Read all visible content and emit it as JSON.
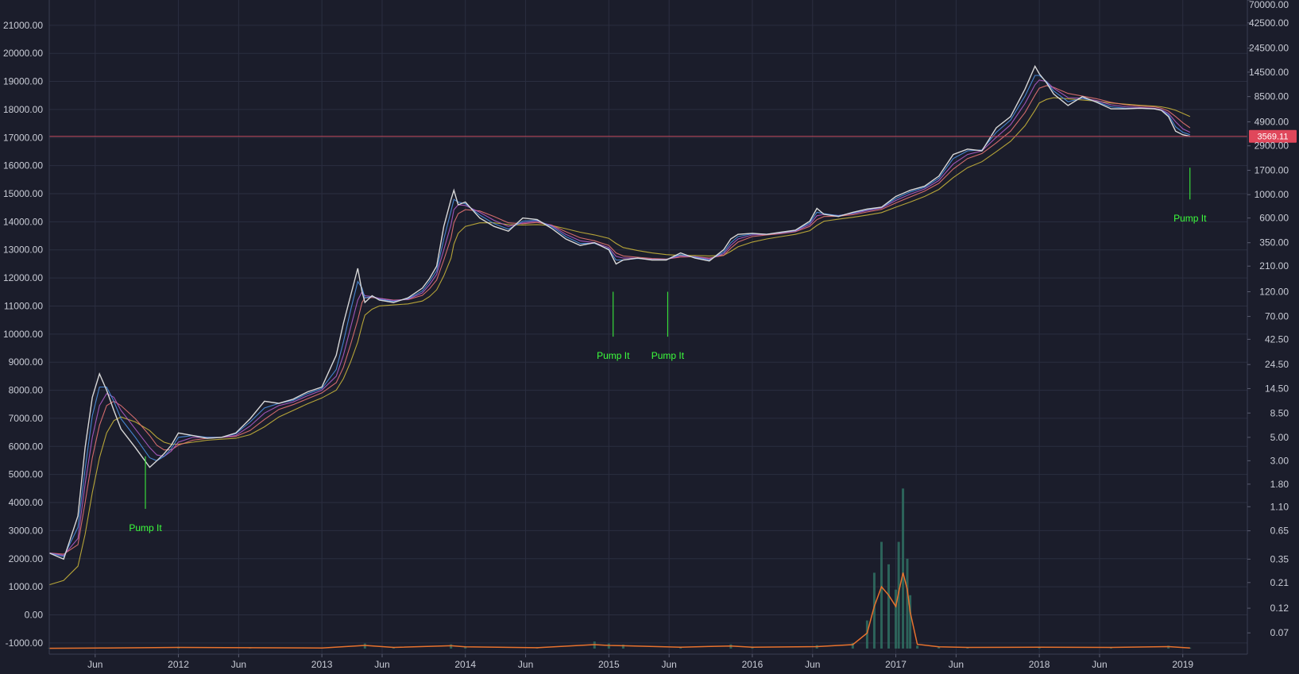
{
  "chart_data": {
    "type": "line",
    "title": "",
    "xlabel": "",
    "ylabel": "",
    "log_scale_right": true,
    "grid": true,
    "colors": {
      "background": "#1b1d2b",
      "grid": "#2b2e40",
      "price": "#d8d8d8",
      "ma1": "#4a90e2",
      "ma2": "#b05cc6",
      "ma3": "#e57373",
      "ma4": "#c8b43a",
      "volume": "#2f6b5f",
      "volume_ma": "#e8722d",
      "current_line": "#c0485a",
      "current_badge": "#e0475b",
      "annotation": "#3cff3c"
    },
    "x_ticks": [
      "Jun",
      "2012",
      "Jun",
      "2013",
      "Jun",
      "2014",
      "Jun",
      "2015",
      "Jun",
      "2016",
      "Jun",
      "2017",
      "Jun",
      "2018",
      "Jun",
      "2019"
    ],
    "x_tick_years": [
      2011.42,
      2012.0,
      2012.42,
      2013.0,
      2013.42,
      2014.0,
      2014.42,
      2015.0,
      2015.42,
      2016.0,
      2016.42,
      2017.0,
      2017.42,
      2018.0,
      2018.42,
      2019.0
    ],
    "x_range": [
      2011.1,
      2019.45
    ],
    "left_axis": {
      "ticks": [
        "21000.00",
        "20000.00",
        "19000.00",
        "18000.00",
        "17000.00",
        "16000.00",
        "15000.00",
        "14000.00",
        "13000.00",
        "12000.00",
        "11000.00",
        "10000.00",
        "9000.00",
        "8000.00",
        "7000.00",
        "6000.00",
        "5000.00",
        "4000.00",
        "3000.00",
        "2000.00",
        "1000.00",
        "0.00",
        "-1000.00"
      ],
      "range": [
        -1400,
        21900
      ]
    },
    "right_axis": {
      "ticks": [
        "70000.00",
        "42500.00",
        "24500.00",
        "14500.00",
        "8500.00",
        "4900.00",
        "2900.00",
        "1700.00",
        "1000.00",
        "600.00",
        "350.00",
        "210.00",
        "120.00",
        "70.00",
        "42.50",
        "24.50",
        "14.50",
        "8.50",
        "5.00",
        "3.00",
        "1.80",
        "1.10",
        "0.65",
        "0.35",
        "0.21",
        "0.12",
        "0.07"
      ],
      "values": [
        70000,
        42500,
        24500,
        14500,
        8500,
        4900,
        2900,
        1700,
        1000,
        600,
        350,
        210,
        120,
        70,
        42.5,
        24.5,
        14.5,
        8.5,
        5,
        3,
        1.8,
        1.1,
        0.65,
        0.35,
        0.21,
        0.12,
        0.07
      ],
      "range": [
        0.044,
        70000
      ]
    },
    "current_price": {
      "value": 3569.11,
      "label": "3569.11"
    },
    "series": [
      {
        "role": "price",
        "x": [
          2011.1,
          2011.2,
          2011.3,
          2011.35,
          2011.4,
          2011.45,
          2011.5,
          2011.55,
          2011.6,
          2011.7,
          2011.8,
          2011.85,
          2011.9,
          2011.95,
          2012.0,
          2012.1,
          2012.2,
          2012.3,
          2012.4,
          2012.5,
          2012.6,
          2012.7,
          2012.8,
          2012.9,
          2013.0,
          2013.1,
          2013.15,
          2013.2,
          2013.25,
          2013.28,
          2013.3,
          2013.35,
          2013.4,
          2013.5,
          2013.6,
          2013.7,
          2013.75,
          2013.8,
          2013.85,
          2013.9,
          2013.92,
          2013.95,
          2014.0,
          2014.1,
          2014.2,
          2014.3,
          2014.4,
          2014.5,
          2014.6,
          2014.7,
          2014.8,
          2014.9,
          2015.0,
          2015.05,
          2015.1,
          2015.2,
          2015.3,
          2015.4,
          2015.5,
          2015.6,
          2015.7,
          2015.8,
          2015.85,
          2015.9,
          2016.0,
          2016.1,
          2016.2,
          2016.3,
          2016.4,
          2016.45,
          2016.5,
          2016.6,
          2016.7,
          2016.8,
          2016.9,
          2017.0,
          2017.1,
          2017.2,
          2017.3,
          2017.4,
          2017.5,
          2017.6,
          2017.7,
          2017.8,
          2017.9,
          2017.97,
          2018.0,
          2018.05,
          2018.1,
          2018.2,
          2018.3,
          2018.4,
          2018.5,
          2018.6,
          2018.7,
          2018.8,
          2018.85,
          2018.9,
          2018.95,
          2019.0,
          2019.05
        ],
        "values": [
          0.4,
          0.35,
          0.9,
          4,
          12,
          20,
          14,
          9,
          6,
          4,
          2.6,
          3,
          3.5,
          4.2,
          5.5,
          5.2,
          4.9,
          5,
          5.5,
          7.5,
          11,
          10.5,
          11.5,
          13.5,
          15,
          30,
          60,
          110,
          200,
          120,
          95,
          110,
          100,
          95,
          105,
          130,
          160,
          210,
          500,
          900,
          1100,
          800,
          850,
          600,
          500,
          450,
          600,
          580,
          480,
          380,
          330,
          350,
          300,
          220,
          240,
          250,
          240,
          240,
          280,
          250,
          235,
          300,
          380,
          420,
          430,
          420,
          440,
          460,
          560,
          740,
          650,
          620,
          680,
          730,
          760,
          960,
          1100,
          1200,
          1500,
          2400,
          2700,
          2600,
          4300,
          5500,
          10000,
          16500,
          14000,
          11500,
          9000,
          7000,
          8500,
          7500,
          6500,
          6500,
          6600,
          6500,
          6300,
          5500,
          4000,
          3700,
          3569
        ]
      },
      {
        "role": "ma1",
        "values": [
          0.4,
          0.37,
          0.7,
          2.5,
          8,
          15,
          15,
          11,
          7.5,
          5,
          3.2,
          3,
          3.3,
          3.9,
          5,
          5.2,
          5,
          5,
          5.4,
          7,
          9.5,
          10.5,
          11.2,
          13,
          14.5,
          22,
          40,
          80,
          150,
          130,
          105,
          108,
          102,
          97,
          103,
          122,
          150,
          190,
          380,
          700,
          900,
          850,
          820,
          640,
          530,
          470,
          560,
          570,
          500,
          400,
          345,
          345,
          305,
          240,
          240,
          248,
          242,
          242,
          270,
          255,
          240,
          285,
          350,
          400,
          425,
          422,
          436,
          455,
          540,
          680,
          660,
          630,
          670,
          720,
          755,
          920,
          1060,
          1170,
          1430,
          2200,
          2600,
          2650,
          3900,
          5100,
          8600,
          13500,
          13500,
          11800,
          9600,
          7600,
          8200,
          7600,
          6800,
          6600,
          6600,
          6500,
          6350,
          5700,
          4400,
          3900,
          3700
        ]
      },
      {
        "role": "ma2",
        "values": [
          0.4,
          0.38,
          0.55,
          1.8,
          5,
          10,
          13,
          12,
          9,
          6,
          4,
          3.4,
          3.3,
          3.7,
          4.5,
          5,
          5,
          5,
          5.2,
          6.4,
          8.5,
          10,
          10.8,
          12.4,
          14,
          19,
          30,
          55,
          100,
          120,
          110,
          108,
          104,
          99,
          102,
          117,
          140,
          175,
          300,
          520,
          720,
          800,
          790,
          680,
          570,
          500,
          540,
          560,
          510,
          420,
          365,
          350,
          315,
          260,
          250,
          250,
          244,
          243,
          262,
          258,
          245,
          275,
          330,
          380,
          415,
          420,
          432,
          450,
          520,
          630,
          650,
          635,
          660,
          705,
          745,
          880,
          1010,
          1130,
          1360,
          1950,
          2400,
          2600,
          3500,
          4600,
          7300,
          11000,
          12200,
          11800,
          10200,
          8300,
          8200,
          7800,
          7100,
          6800,
          6700,
          6600,
          6400,
          5900,
          4900,
          4200,
          3900
        ]
      },
      {
        "role": "ma3",
        "values": [
          0.4,
          0.39,
          0.48,
          1.2,
          3.2,
          6.5,
          10,
          11,
          10,
          7.5,
          5.2,
          4.2,
          3.8,
          3.8,
          4.2,
          4.7,
          4.9,
          5,
          5.1,
          5.8,
          7.4,
          9.2,
          10.2,
          11.6,
          13.2,
          16.5,
          23,
          38,
          65,
          95,
          105,
          106,
          104,
          100,
          101,
          111,
          128,
          155,
          240,
          390,
          540,
          660,
          720,
          700,
          620,
          540,
          530,
          545,
          515,
          445,
          390,
          365,
          330,
          280,
          262,
          255,
          248,
          245,
          256,
          258,
          250,
          265,
          310,
          355,
          400,
          415,
          427,
          445,
          500,
          580,
          620,
          625,
          645,
          685,
          725,
          835,
          950,
          1080,
          1280,
          1750,
          2200,
          2450,
          3100,
          4000,
          6000,
          8800,
          10200,
          10800,
          10400,
          9100,
          8600,
          8100,
          7500,
          7100,
          6900,
          6800,
          6600,
          6200,
          5500,
          4800,
          4300
        ]
      },
      {
        "role": "ma4",
        "values": [
          0.2,
          0.22,
          0.3,
          0.6,
          1.5,
          3.2,
          5.5,
          7.2,
          7.8,
          7,
          5.8,
          5,
          4.5,
          4.3,
          4.3,
          4.5,
          4.7,
          4.8,
          4.9,
          5.3,
          6.3,
          7.8,
          9,
          10.4,
          11.8,
          14,
          18,
          26,
          40,
          58,
          72,
          82,
          88,
          90,
          92,
          98,
          108,
          125,
          170,
          250,
          340,
          430,
          500,
          540,
          540,
          520,
          515,
          520,
          510,
          475,
          440,
          415,
          385,
          345,
          315,
          295,
          280,
          270,
          265,
          265,
          262,
          266,
          290,
          320,
          355,
          380,
          400,
          420,
          455,
          510,
          560,
          585,
          610,
          640,
          675,
          760,
          850,
          960,
          1120,
          1450,
          1800,
          2050,
          2550,
          3200,
          4500,
          6300,
          7400,
          8000,
          8300,
          8100,
          7900,
          7700,
          7400,
          7200,
          7050,
          6900,
          6800,
          6600,
          6300,
          5900,
          5500
        ]
      }
    ],
    "volume": {
      "x": [
        2011.1,
        2011.5,
        2012.0,
        2012.5,
        2013.0,
        2013.3,
        2013.5,
        2013.9,
        2014.0,
        2014.5,
        2014.9,
        2015.0,
        2015.1,
        2015.5,
        2015.85,
        2016.0,
        2016.45,
        2016.7,
        2016.8,
        2016.85,
        2016.9,
        2016.95,
        2017.0,
        2017.02,
        2017.05,
        2017.08,
        2017.1,
        2017.15,
        2017.3,
        2017.5,
        2018.0,
        2018.5,
        2018.9,
        2019.05
      ],
      "values": [
        -1180,
        -1170,
        -1140,
        -1160,
        -1170,
        -1020,
        -1150,
        -1050,
        -1120,
        -1160,
        -950,
        -1020,
        -1060,
        -1140,
        -1050,
        -1130,
        -1080,
        -1000,
        -200,
        1500,
        2600,
        1800,
        900,
        2600,
        4500,
        2000,
        700,
        -1100,
        -1150,
        -1160,
        -1150,
        -1160,
        -1100,
        -1170
      ]
    },
    "volume_ma": {
      "x": [
        2011.1,
        2011.5,
        2012.0,
        2012.5,
        2013.0,
        2013.3,
        2013.5,
        2013.9,
        2014.0,
        2014.5,
        2014.9,
        2015.0,
        2015.1,
        2015.5,
        2015.85,
        2016.0,
        2016.45,
        2016.7,
        2016.8,
        2016.85,
        2016.9,
        2016.95,
        2017.0,
        2017.02,
        2017.05,
        2017.08,
        2017.1,
        2017.15,
        2017.3,
        2017.5,
        2018.0,
        2018.5,
        2018.9,
        2019.05
      ],
      "values": [
        -1190,
        -1180,
        -1160,
        -1170,
        -1180,
        -1090,
        -1160,
        -1100,
        -1140,
        -1170,
        -1060,
        -1090,
        -1100,
        -1150,
        -1110,
        -1150,
        -1130,
        -1060,
        -650,
        300,
        1000,
        700,
        300,
        800,
        1500,
        900,
        100,
        -1050,
        -1140,
        -1160,
        -1150,
        -1160,
        -1130,
        -1180
      ]
    },
    "annotations": [
      {
        "text": "Pump It",
        "x": 2011.77,
        "line_top_price": 3.3,
        "line_bottom_price": 1.05
      },
      {
        "text": "Pump It",
        "x": 2015.03,
        "line_top_price": 120,
        "line_bottom_price": 45
      },
      {
        "text": "Pump It",
        "x": 2015.41,
        "line_top_price": 120,
        "line_bottom_price": 45
      },
      {
        "text": "Pump It",
        "x": 2019.05,
        "line_top_price": 1800,
        "line_bottom_price": 900
      }
    ]
  }
}
